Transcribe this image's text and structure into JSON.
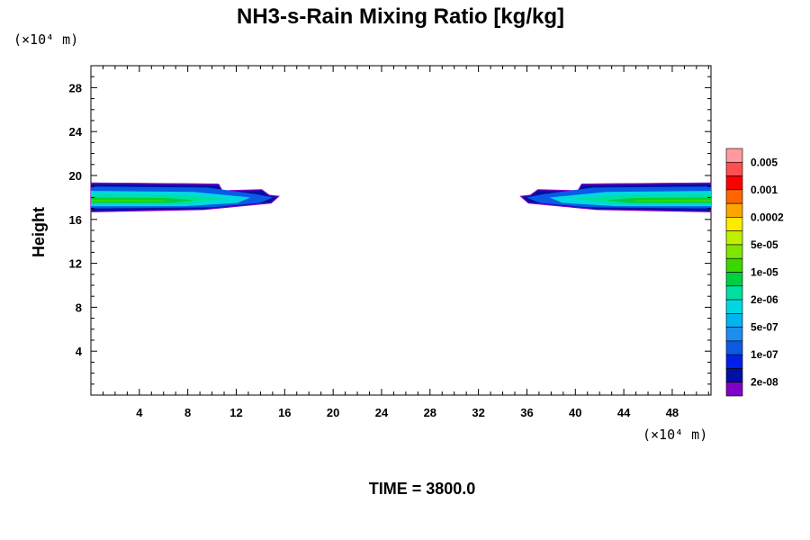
{
  "chart_data": {
    "type": "heatmap",
    "title": "NH3-s-Rain Mixing Ratio [kg/kg]",
    "xlabel": "",
    "ylabel": "Height",
    "x_unit": "(×10⁴ m)",
    "y_unit": "(×10⁴ m)",
    "xlim": [
      0,
      51.2
    ],
    "ylim": [
      0,
      30
    ],
    "x_ticks": [
      4,
      8,
      12,
      16,
      20,
      24,
      28,
      32,
      36,
      40,
      44,
      48
    ],
    "y_ticks": [
      4,
      8,
      12,
      16,
      20,
      24,
      28
    ],
    "time_label": "TIME = 3800.0",
    "legend": {
      "labels": [
        "0.005",
        "0.001",
        "0.0002",
        "5e-05",
        "1e-05",
        "2e-06",
        "5e-07",
        "1e-07",
        "2e-08"
      ],
      "colors": [
        "#FF9AA0",
        "#FF4F50",
        "#FF0000",
        "#FF6600",
        "#FFA500",
        "#FFEB00",
        "#BEF000",
        "#80E600",
        "#3AD800",
        "#00D040",
        "#00E0A0",
        "#00D8E0",
        "#00B4F0",
        "#1E8CF0",
        "#0A5AE6",
        "#0020E8",
        "#0010A0",
        "#8000C8"
      ]
    },
    "regions": [
      {
        "name": "left-plume",
        "x_range": [
          0,
          15.5
        ],
        "y_range": [
          16.8,
          19.3
        ],
        "core_y": 17.6,
        "max_category": "5e-05"
      },
      {
        "name": "right-plume",
        "x_range": [
          35.5,
          51.2
        ],
        "y_range": [
          16.8,
          19.3
        ],
        "core_y": 17.6,
        "max_category": "5e-05"
      }
    ]
  }
}
